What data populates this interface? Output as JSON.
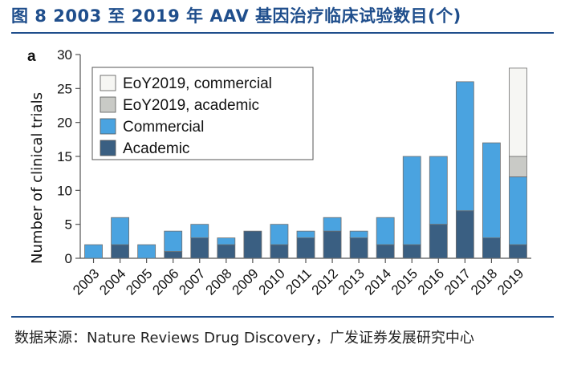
{
  "figure_title": "图 8  2003 至 2019 年 AAV 基因治疗临床试验数目(个)",
  "panel_label": "a",
  "source_text": "数据来源：Nature Reviews Drug Discovery，广发证券发展研究中心",
  "colors": {
    "academic": "#3a5f82",
    "commercial": "#4aa3e0",
    "eoy_academic": "#c9cac6",
    "eoy_commercial": "#f6f6f3",
    "title": "#1f4e8c"
  },
  "chart_data": {
    "type": "bar",
    "stacked": true,
    "ylabel": "Number of clinical trials",
    "xlabel": "",
    "ylim": [
      0,
      30
    ],
    "yticks": [
      0,
      5,
      10,
      15,
      20,
      25,
      30
    ],
    "grid": false,
    "legend_position": "top-left",
    "categories": [
      "2003",
      "2004",
      "2005",
      "2006",
      "2007",
      "2008",
      "2009",
      "2010",
      "2011",
      "2012",
      "2013",
      "2014",
      "2015",
      "2016",
      "2017",
      "2018",
      "2019"
    ],
    "series": [
      {
        "name": "Academic",
        "color_key": "academic",
        "values": [
          0,
          2,
          0,
          1,
          3,
          2,
          4,
          2,
          3,
          4,
          3,
          2,
          2,
          5,
          7,
          3,
          2
        ]
      },
      {
        "name": "Commercial",
        "color_key": "commercial",
        "values": [
          2,
          4,
          2,
          3,
          2,
          1,
          0,
          3,
          1,
          2,
          1,
          4,
          13,
          10,
          19,
          14,
          10
        ]
      },
      {
        "name": "EoY2019, academic",
        "color_key": "eoy_academic",
        "values": [
          0,
          0,
          0,
          0,
          0,
          0,
          0,
          0,
          0,
          0,
          0,
          0,
          0,
          0,
          0,
          0,
          3
        ]
      },
      {
        "name": "EoY2019, commercial",
        "color_key": "eoy_commercial",
        "values": [
          0,
          0,
          0,
          0,
          0,
          0,
          0,
          0,
          0,
          0,
          0,
          0,
          0,
          0,
          0,
          0,
          13
        ]
      }
    ],
    "legend_order": [
      "EoY2019, commercial",
      "EoY2019, academic",
      "Commercial",
      "Academic"
    ]
  }
}
